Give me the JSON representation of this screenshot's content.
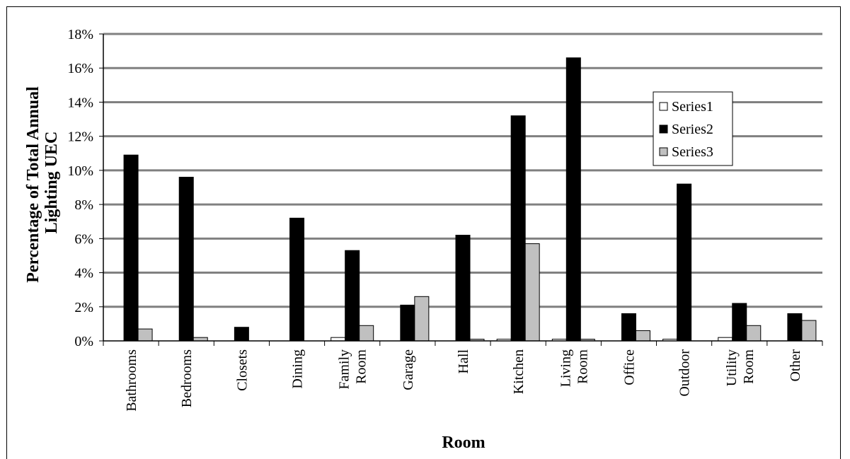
{
  "chart_data": {
    "type": "bar",
    "title": "",
    "xlabel": "Room",
    "ylabel": [
      "Percentage of Total Annual",
      "Lighting UEC"
    ],
    "ylim": [
      0,
      18
    ],
    "ytick_step": 2,
    "ytick_labels": [
      "0%",
      "2%",
      "4%",
      "6%",
      "8%",
      "10%",
      "12%",
      "14%",
      "16%",
      "18%"
    ],
    "grid": true,
    "legend_position": "right",
    "categories": [
      [
        "Bathrooms"
      ],
      [
        "Bedrooms"
      ],
      [
        "Closets"
      ],
      [
        "Dining"
      ],
      [
        "Family",
        "Room"
      ],
      [
        "Garage"
      ],
      [
        "Hall"
      ],
      [
        "Kitchen"
      ],
      [
        "Living",
        "Room"
      ],
      [
        "Office"
      ],
      [
        "Outdoor"
      ],
      [
        "Utility",
        "Room"
      ],
      [
        "Other"
      ]
    ],
    "series": [
      {
        "name": "Series1",
        "color": "#ffffff",
        "values": [
          0.0,
          0.0,
          0.0,
          0.0,
          0.2,
          0.0,
          0.0,
          0.1,
          0.1,
          0.0,
          0.1,
          0.2,
          0.0
        ]
      },
      {
        "name": "Series2",
        "color": "#000000",
        "values": [
          10.9,
          9.6,
          0.8,
          7.2,
          5.3,
          2.1,
          6.2,
          13.2,
          16.6,
          1.6,
          9.2,
          2.2,
          1.6
        ]
      },
      {
        "name": "Series3",
        "color": "#c0c0c0",
        "values": [
          0.7,
          0.2,
          0.0,
          0.0,
          0.9,
          2.6,
          0.1,
          5.7,
          0.1,
          0.6,
          0.0,
          0.9,
          1.2
        ]
      }
    ]
  }
}
